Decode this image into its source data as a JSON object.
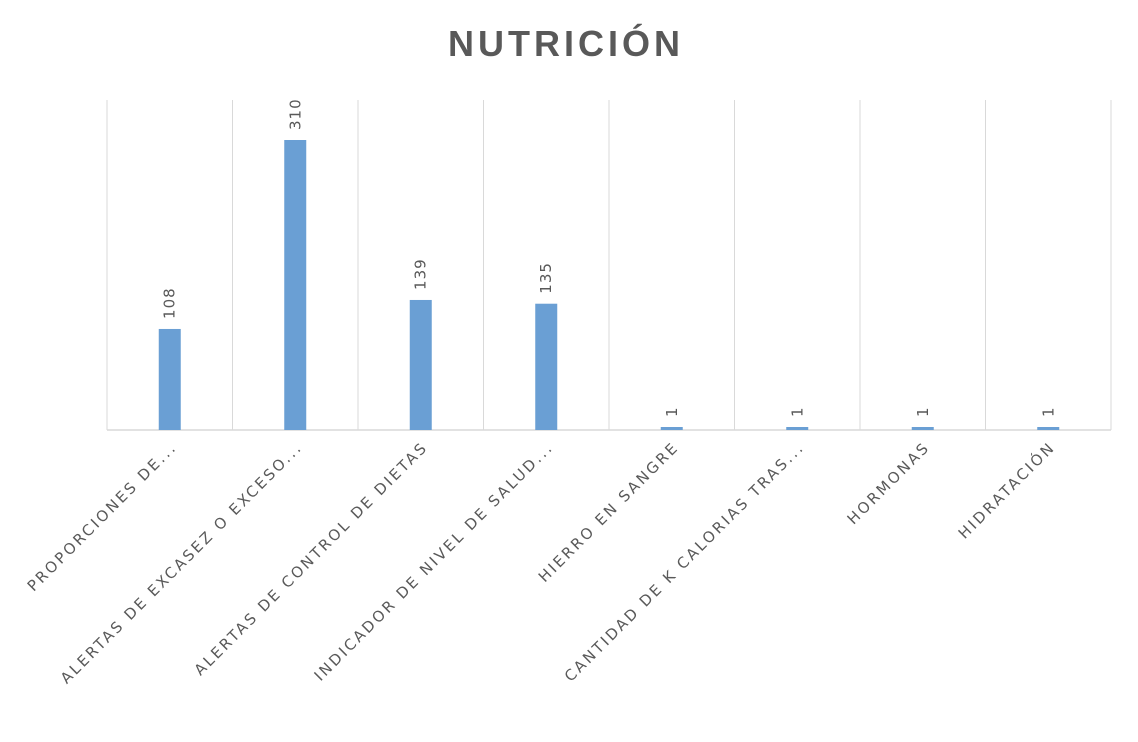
{
  "chart_data": {
    "type": "bar",
    "title": "NUTRICIÓN",
    "categories": [
      "PROPORCIONES DE...",
      "ALERTAS DE EXCASEZ O EXCESO...",
      "ALERTAS DE CONTROL DE DIETAS",
      "INDICADOR DE NIVEL DE SALUD...",
      "HIERRO EN SANGRE",
      "CANTIDAD DE K CALORIAS TRAS...",
      "HORMONAS",
      "HIDRATACIÓN"
    ],
    "values": [
      108,
      310,
      139,
      135,
      1,
      1,
      1,
      1
    ],
    "data_labels": [
      "108",
      "310",
      "139",
      "135",
      "1",
      "1",
      "1",
      "1"
    ],
    "ylim": [
      0,
      350
    ],
    "xlabel": "",
    "ylabel": "",
    "grid": "vertical category separators",
    "legend": "none",
    "bar_color": "#6a9fd4"
  }
}
